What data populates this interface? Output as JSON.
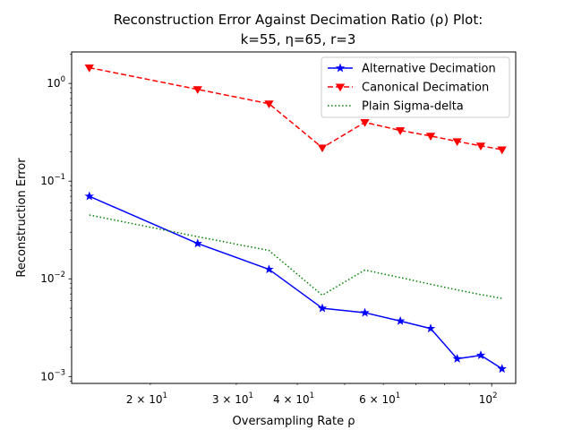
{
  "chart_data": {
    "type": "line",
    "title_line1": "Reconstruction Error Against Decimation Ratio (ρ) Plot:",
    "title_line2": "k=55, η=65, r=3",
    "xlabel": "Oversampling Rate ρ",
    "ylabel": "Reconstruction Error",
    "xscale": "log",
    "yscale": "log",
    "xlim": [
      13.8,
      112
    ],
    "ylim": [
      0.00085,
      2.1
    ],
    "grid": false,
    "legend_position": "upper right",
    "x_major_ticks": [
      {
        "value": 100,
        "base": "10",
        "exp": "2"
      }
    ],
    "x_minor_ticks": [
      {
        "value": 20,
        "mant": "2",
        "base": "10",
        "exp": "1"
      },
      {
        "value": 30,
        "mant": "3",
        "base": "10",
        "exp": "1"
      },
      {
        "value": 40,
        "mant": "4",
        "base": "10",
        "exp": "1"
      },
      {
        "value": 60,
        "mant": "6",
        "base": "10",
        "exp": "1"
      }
    ],
    "x_unlabeled_minor_ticks": [
      50,
      70,
      80,
      90
    ],
    "y_major_ticks": [
      {
        "value": 0.001,
        "base": "10",
        "exp": "−3"
      },
      {
        "value": 0.01,
        "base": "10",
        "exp": "−2"
      },
      {
        "value": 0.1,
        "base": "10",
        "exp": "−1"
      },
      {
        "value": 1,
        "base": "10",
        "exp": "0"
      }
    ],
    "series": [
      {
        "name": "Alternative Decimation",
        "color": "#0000ff",
        "dash": "solid",
        "marker": "star",
        "x": [
          15,
          25,
          35,
          45,
          55,
          65,
          75,
          85,
          95,
          105
        ],
        "y": [
          0.07,
          0.023,
          0.0125,
          0.005,
          0.0045,
          0.0037,
          0.0031,
          0.00152,
          0.00165,
          0.0012
        ]
      },
      {
        "name": "Canonical Decimation",
        "color": "#ff0000",
        "dash": "dashed",
        "marker": "triangle-down",
        "x": [
          15,
          25,
          35,
          45,
          55,
          65,
          75,
          85,
          95,
          105
        ],
        "y": [
          1.45,
          0.87,
          0.62,
          0.22,
          0.4,
          0.33,
          0.29,
          0.255,
          0.23,
          0.21
        ]
      },
      {
        "name": "Plain Sigma-delta",
        "color": "#008000",
        "dash": "dotted",
        "marker": "none",
        "x": [
          15,
          25,
          35,
          45,
          55,
          65,
          75,
          85,
          95,
          105
        ],
        "y": [
          0.045,
          0.027,
          0.0195,
          0.0068,
          0.0123,
          0.0103,
          0.0088,
          0.0077,
          0.0069,
          0.0063
        ]
      }
    ]
  }
}
